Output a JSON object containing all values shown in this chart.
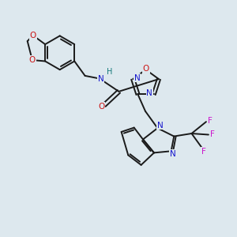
{
  "bg_color": "#dde8ee",
  "bond_color": "#1a1a1a",
  "N_color": "#1414cc",
  "O_color": "#cc1414",
  "F_color": "#cc14cc",
  "H_color": "#147878",
  "figsize": [
    3.0,
    3.0
  ],
  "dpi": 100,
  "xlim": [
    0,
    10
  ],
  "ylim": [
    0,
    10
  ]
}
